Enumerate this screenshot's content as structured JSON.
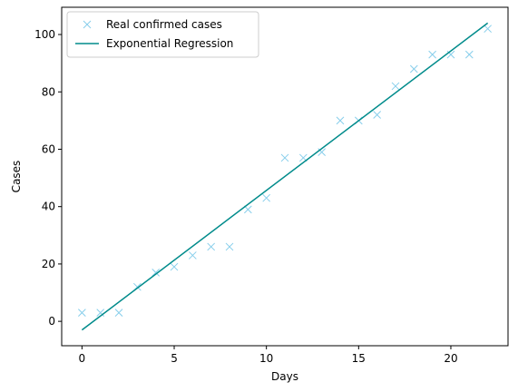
{
  "chart_data": {
    "type": "scatter",
    "title": "",
    "xlabel": "Days",
    "ylabel": "Cases",
    "xlim": [
      -1.1,
      23.1
    ],
    "ylim": [
      -8.5,
      109.5
    ],
    "xticks": [
      0,
      5,
      10,
      15,
      20
    ],
    "yticks": [
      0,
      20,
      40,
      60,
      80,
      100
    ],
    "grid": false,
    "legend_position": "top-left",
    "series": [
      {
        "name": "Real confirmed cases",
        "kind": "marker",
        "marker": "x",
        "color": "#87CEEB",
        "x": [
          0,
          1,
          2,
          3,
          4,
          5,
          6,
          7,
          8,
          9,
          10,
          11,
          12,
          13,
          14,
          15,
          16,
          17,
          18,
          19,
          20,
          21,
          22
        ],
        "y": [
          3,
          3,
          3,
          12,
          17,
          19,
          23,
          26,
          26,
          39,
          43,
          57,
          57,
          59,
          70,
          70,
          72,
          82,
          88,
          93,
          93,
          93,
          102
        ]
      },
      {
        "name": "Exponential Regression",
        "kind": "line",
        "color": "#008B8B",
        "x": [
          0,
          22
        ],
        "y": [
          -3,
          104
        ]
      }
    ]
  }
}
